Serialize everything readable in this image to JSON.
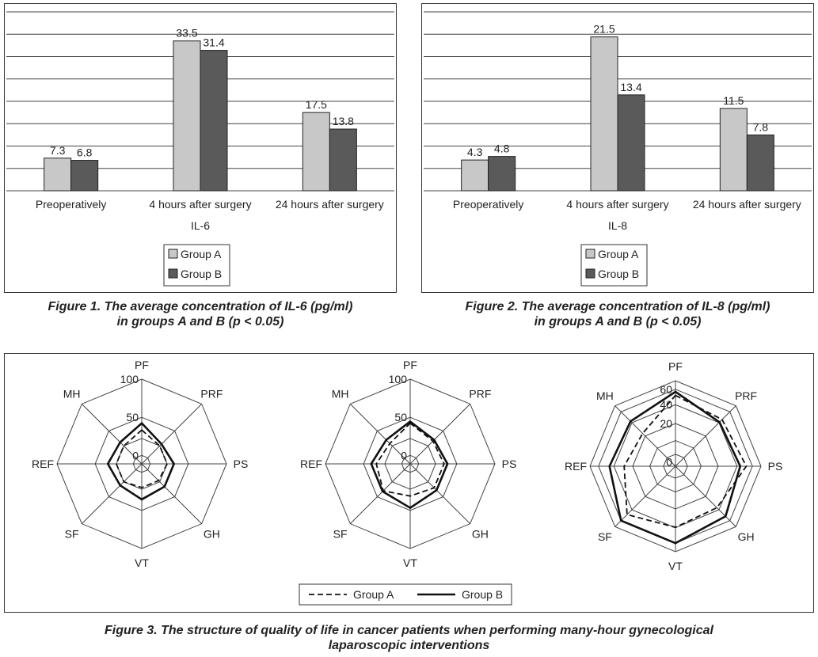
{
  "chart_data": [
    {
      "type": "bar",
      "categories": [
        "Preoperatively",
        "4 hours after surgery",
        "24 hours after surgery"
      ],
      "xlabel": "IL-6",
      "ylim": [
        0,
        40
      ],
      "grid": true,
      "legend_position": "bottom",
      "series": [
        {
          "name": "Group A",
          "values": [
            7.3,
            33.5,
            17.5
          ],
          "color": "#c8c8c8",
          "labels": [
            "7.3",
            "33.5",
            "17.5"
          ]
        },
        {
          "name": "Group B",
          "values": [
            6.8,
            31.4,
            13.8
          ],
          "color": "#5a5a5a",
          "labels": [
            "6.8",
            "31.4",
            "13.8"
          ]
        }
      ]
    },
    {
      "type": "bar",
      "categories": [
        "Preoperatively",
        "4 hours after surgery",
        "24 hours after surgery"
      ],
      "xlabel": "IL-8",
      "ylim": [
        0,
        25
      ],
      "grid": true,
      "legend_position": "bottom",
      "series": [
        {
          "name": "Group A",
          "values": [
            4.3,
            21.5,
            11.5
          ],
          "color": "#c8c8c8",
          "labels": [
            "4.3",
            "21.5",
            "11.5"
          ]
        },
        {
          "name": "Group B",
          "values": [
            4.8,
            13.4,
            7.8
          ],
          "color": "#5a5a5a",
          "labels": [
            "4.8",
            "13.4",
            "7.8"
          ]
        }
      ]
    },
    {
      "type": "radar",
      "axes": [
        "PF",
        "PRF",
        "PS",
        "GH",
        "VT",
        "SF",
        "REF",
        "MH"
      ],
      "rmax": 100,
      "ticks": [
        "0",
        "50",
        "100"
      ],
      "series": [
        {
          "name": "Group A",
          "style": "dashed",
          "values": [
            40,
            30,
            30,
            28,
            28,
            30,
            30,
            30
          ]
        },
        {
          "name": "Group B",
          "style": "solid",
          "values": [
            48,
            33,
            38,
            38,
            42,
            36,
            40,
            36
          ]
        }
      ]
    },
    {
      "type": "radar",
      "axes": [
        "PF",
        "PRF",
        "PS",
        "GH",
        "VT",
        "SF",
        "REF",
        "MH"
      ],
      "rmax": 100,
      "ticks": [
        "0",
        "50",
        "100"
      ],
      "series": [
        {
          "name": "Group A",
          "style": "dashed",
          "values": [
            48,
            38,
            40,
            40,
            38,
            45,
            40,
            34
          ]
        },
        {
          "name": "Group B",
          "style": "solid",
          "values": [
            50,
            40,
            44,
            44,
            52,
            46,
            46,
            40
          ]
        }
      ]
    },
    {
      "type": "radar",
      "axes": [
        "PF",
        "PRF",
        "PS",
        "GH",
        "VT",
        "SF",
        "REF",
        "MH"
      ],
      "rmax": 70,
      "ticks": [
        "0",
        "20",
        "40",
        "60"
      ],
      "series": [
        {
          "name": "Group A",
          "style": "dashed",
          "values": [
            58,
            54,
            58,
            48,
            50,
            56,
            42,
            38
          ]
        },
        {
          "name": "Group B",
          "style": "solid",
          "values": [
            61,
            51,
            53,
            58,
            63,
            63,
            54,
            52
          ]
        }
      ]
    }
  ],
  "legend3": [
    {
      "name": "Group A",
      "style": "dashed"
    },
    {
      "name": "Group B",
      "style": "solid"
    }
  ],
  "captions": {
    "fig1": [
      "Figure 1. The average concentration of IL-6 (pg/ml)",
      "in groups A and B (p < 0.05)"
    ],
    "fig2": [
      "Figure 2. The average concentration of IL-8 (pg/ml)",
      "in groups A and B (p < 0.05)"
    ],
    "fig3": [
      "Figure 3. The structure of quality of life in cancer patients when performing many-hour gynecological",
      "laparoscopic interventions"
    ]
  }
}
